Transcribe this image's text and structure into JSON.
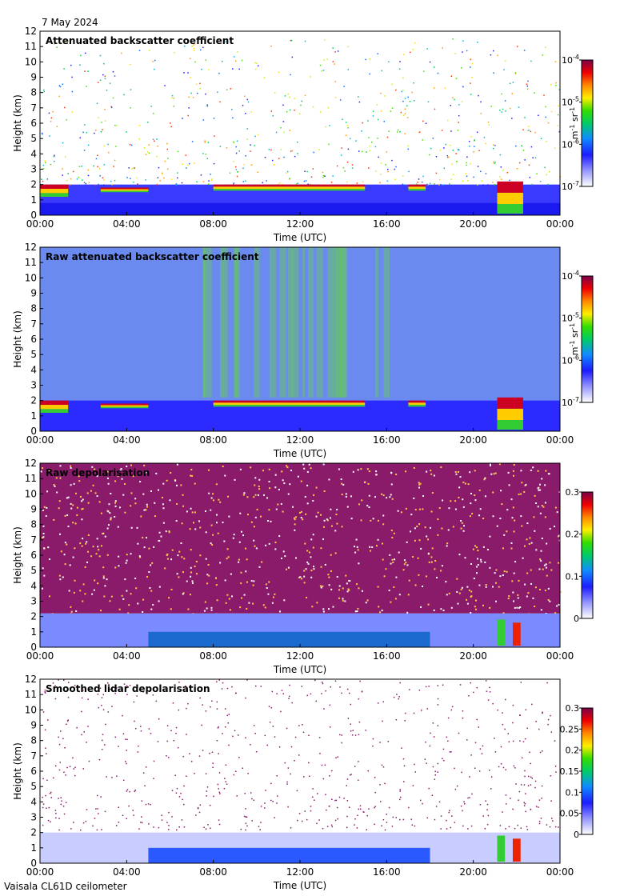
{
  "date": "7 May 2024",
  "footer": "Vaisala CL61D ceilometer",
  "chart_data": [
    {
      "type": "heatmap",
      "title": "Attenuated backscatter coefficient",
      "xlabel": "Time (UTC)",
      "ylabel": "Height (km)",
      "xticks": [
        "00:00",
        "04:00",
        "08:00",
        "12:00",
        "16:00",
        "20:00",
        "00:00"
      ],
      "xlim": [
        0,
        24
      ],
      "ylim": [
        0,
        12
      ],
      "yticks": [
        0,
        1,
        2,
        3,
        4,
        5,
        6,
        7,
        8,
        9,
        10,
        11,
        12
      ],
      "colorbar": {
        "scale": "log",
        "unit": "m-1 sr-1",
        "ticks": [
          {
            "base": "10",
            "exp": "-7"
          },
          {
            "base": "10",
            "exp": "-6"
          },
          {
            "base": "10",
            "exp": "-5"
          },
          {
            "base": "10",
            "exp": "-4"
          }
        ]
      },
      "features": [
        {
          "time_range": [
            0,
            1.3
          ],
          "height_km": [
            1.2,
            2.0
          ],
          "intensity": "high"
        },
        {
          "time_range": [
            2.8,
            5.0
          ],
          "height_km": [
            1.5,
            1.8
          ],
          "intensity": "high"
        },
        {
          "time_range": [
            8.0,
            15.0
          ],
          "height_km": [
            1.6,
            2.0
          ],
          "intensity": "high"
        },
        {
          "time_range": [
            17.0,
            17.8
          ],
          "height_km": [
            1.6,
            2.0
          ],
          "intensity": "high"
        },
        {
          "time_range": [
            21.1,
            22.3
          ],
          "height_km": [
            0.1,
            2.2
          ],
          "intensity": "very high"
        }
      ]
    },
    {
      "type": "heatmap",
      "title": "Raw attenuated backscatter coefficient",
      "xlabel": "Time (UTC)",
      "ylabel": "Height (km)",
      "xticks": [
        "00:00",
        "04:00",
        "08:00",
        "12:00",
        "16:00",
        "20:00",
        "00:00"
      ],
      "xlim": [
        0,
        24
      ],
      "ylim": [
        0,
        12
      ],
      "yticks": [
        0,
        1,
        2,
        3,
        4,
        5,
        6,
        7,
        8,
        9,
        10,
        11,
        12
      ],
      "colorbar": {
        "scale": "log",
        "unit": "m-1 sr-1",
        "ticks": [
          {
            "base": "10",
            "exp": "-7"
          },
          {
            "base": "10",
            "exp": "-6"
          },
          {
            "base": "10",
            "exp": "-5"
          },
          {
            "base": "10",
            "exp": "-4"
          }
        ]
      }
    },
    {
      "type": "heatmap",
      "title": "Raw depolarisation",
      "xlabel": "Time (UTC)",
      "ylabel": "Height (km)",
      "xticks": [
        "00:00",
        "04:00",
        "08:00",
        "12:00",
        "16:00",
        "20:00",
        "00:00"
      ],
      "xlim": [
        0,
        24
      ],
      "ylim": [
        0,
        12
      ],
      "yticks": [
        0,
        1,
        2,
        3,
        4,
        5,
        6,
        7,
        8,
        9,
        10,
        11,
        12
      ],
      "colorbar": {
        "scale": "linear",
        "ticks": [
          "0",
          "0.1",
          "0.2",
          "0.3"
        ],
        "range": [
          0,
          0.3
        ]
      }
    },
    {
      "type": "heatmap",
      "title": "Smoothed lidar depolarisation",
      "xlabel": "Time (UTC)",
      "ylabel": "Height (km)",
      "xticks": [
        "00:00",
        "04:00",
        "08:00",
        "12:00",
        "16:00",
        "20:00",
        "00:00"
      ],
      "xlim": [
        0,
        24
      ],
      "ylim": [
        0,
        12
      ],
      "yticks": [
        0,
        1,
        2,
        3,
        4,
        5,
        6,
        7,
        8,
        9,
        10,
        11,
        12
      ],
      "colorbar": {
        "scale": "linear",
        "ticks": [
          "0",
          "0.05",
          "0.1",
          "0.15",
          "0.2",
          "0.25",
          "0.3"
        ],
        "range": [
          0,
          0.3
        ]
      }
    }
  ]
}
